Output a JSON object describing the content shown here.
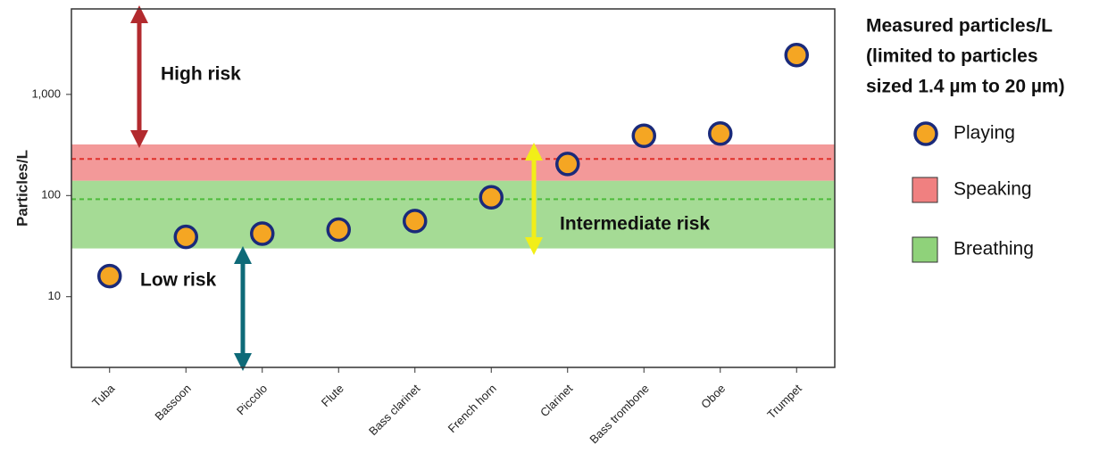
{
  "chart_data": {
    "type": "scatter",
    "y_label": "Particles/L",
    "y_scale": "log",
    "categories": [
      "Tuba",
      "Bassoon",
      "Piccolo",
      "Flute",
      "Bass clarinet",
      "French horn",
      "Clarinet",
      "Bass trombone",
      "Oboe",
      "Trumpet"
    ],
    "series": [
      {
        "name": "Playing",
        "color": "#f5a623",
        "edge_color": "#1a2a7a",
        "values": [
          16,
          39,
          42,
          46,
          56,
          96,
          205,
          390,
          410,
          2450
        ]
      }
    ],
    "bands": [
      {
        "name": "Speaking",
        "color": "#f08080",
        "line_color": "#e0302a",
        "range": [
          140,
          320
        ],
        "line": 230
      },
      {
        "name": "Breathing",
        "color": "#8fd27a",
        "line_color": "#4cbb3a",
        "range": [
          30,
          140
        ],
        "line": 92
      }
    ],
    "annotations": [
      "High risk",
      "Low risk",
      "Intermediate risk"
    ],
    "ylim": [
      2,
      7000
    ],
    "yticks": [
      10,
      100,
      {
        "value": 1000,
        "label": "1,000"
      }
    ],
    "legend_title": [
      "Measured particles/L",
      "(limited to particles",
      "sized 1.4 µm to 20 µm)"
    ]
  }
}
